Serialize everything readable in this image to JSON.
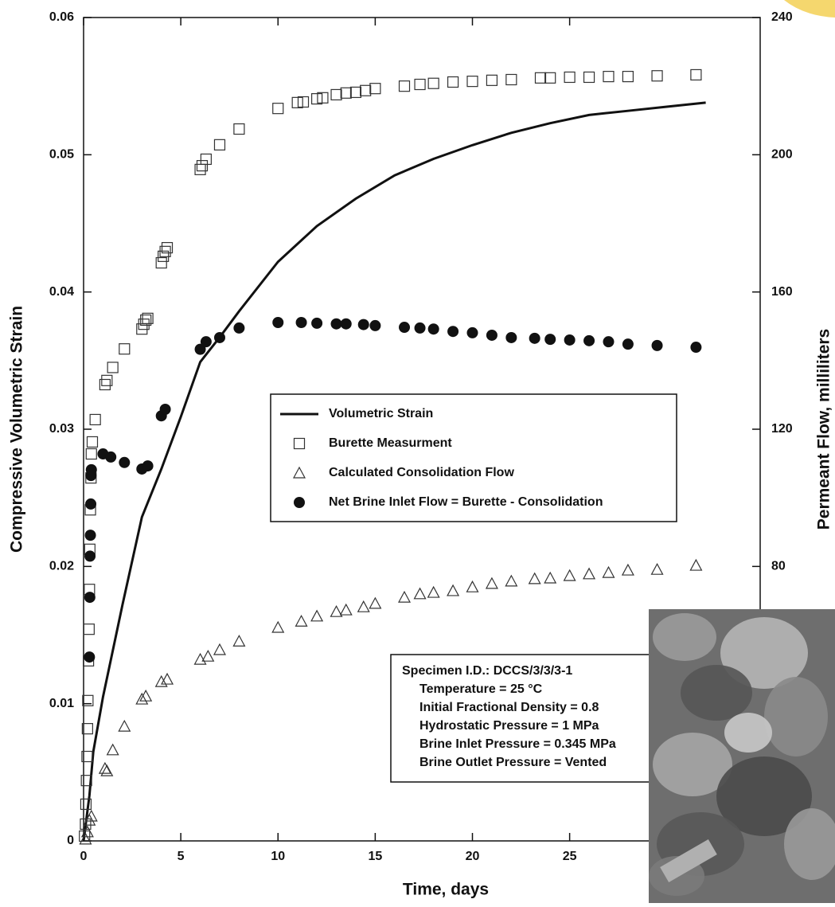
{
  "chart_data": {
    "type": "scatter",
    "x_label": "Time, days",
    "y_label": "Compressive Volumetric Strain",
    "y2_label": "Permeant Flow, milliliters",
    "xlim": [
      0,
      34.8
    ],
    "xticks": [
      0,
      5,
      10,
      15,
      20,
      25
    ],
    "ylim": [
      0,
      0.06
    ],
    "yticks": [
      0,
      0.01,
      0.02,
      0.03,
      0.04,
      0.05,
      0.06
    ],
    "y2lim": [
      0,
      240
    ],
    "y2ticks": [
      80,
      120,
      160,
      200,
      240
    ],
    "series": [
      {
        "name": "Volumetric Strain",
        "marker": "line",
        "color": "#111111",
        "x": [
          0,
          0.3,
          0.5,
          1,
          2,
          3,
          4,
          5,
          6,
          7,
          8,
          10,
          12,
          14,
          16,
          18,
          20,
          22,
          24,
          26,
          28,
          30,
          32
        ],
        "values": [
          0,
          0.0033,
          0.0065,
          0.0105,
          0.0172,
          0.0236,
          0.0271,
          0.0309,
          0.0349,
          0.0367,
          0.0386,
          0.0422,
          0.0448,
          0.0468,
          0.0485,
          0.0497,
          0.0507,
          0.0516,
          0.0523,
          0.0529,
          0.0532,
          0.0535,
          0.0538
        ]
      },
      {
        "name": "Burette Measurment",
        "marker": "square",
        "color": "#333333",
        "axis": "y2",
        "x": [
          0.05,
          0.1,
          0.12,
          0.15,
          0.18,
          0.2,
          0.22,
          0.25,
          0.28,
          0.3,
          0.32,
          0.35,
          0.38,
          0.4,
          0.45,
          0.6,
          1.1,
          1.2,
          1.5,
          2.1,
          3.0,
          3.1,
          3.2,
          3.3,
          4.0,
          4.1,
          4.2,
          4.3,
          6.0,
          6.1,
          6.3,
          7.0,
          8.0,
          10.0,
          11.0,
          11.3,
          12.0,
          12.3,
          13.0,
          13.5,
          14.0,
          14.5,
          15.0,
          16.5,
          17.3,
          18.0,
          19.0,
          20.0,
          21.0,
          22.0,
          23.5,
          24.0,
          25.0,
          26.0,
          27.0,
          28.0,
          29.5,
          31.5
        ],
        "values": [
          1.4,
          4.9,
          10.7,
          17.6,
          24.6,
          32.7,
          40.9,
          52.5,
          61.7,
          73.3,
          85,
          96.5,
          105.8,
          112.8,
          116.3,
          122.8,
          133,
          134.2,
          138,
          143.4,
          149.2,
          150.6,
          151.8,
          152.3,
          168.5,
          170.4,
          171.8,
          172.9,
          195.7,
          196.8,
          198.7,
          202.9,
          207.5,
          213.5,
          215.2,
          215.4,
          216.3,
          216.6,
          217.5,
          218,
          218.2,
          218.7,
          219.3,
          220,
          220.5,
          220.8,
          221.2,
          221.4,
          221.7,
          221.9,
          222.4,
          222.4,
          222.6,
          222.6,
          222.8,
          222.8,
          223,
          223.3
        ]
      },
      {
        "name": "Calculated Consolidation Flow",
        "marker": "triangle",
        "color": "#333333",
        "axis": "y2",
        "x": [
          0.1,
          0.2,
          0.3,
          0.4,
          1.1,
          1.2,
          1.5,
          2.1,
          3.0,
          3.2,
          4.0,
          4.3,
          6.0,
          6.4,
          7.0,
          8.0,
          10.0,
          11.2,
          12.0,
          13.0,
          13.5,
          14.4,
          15.0,
          16.5,
          17.3,
          18.0,
          19.0,
          20.0,
          21.0,
          22.0,
          23.2,
          24.0,
          25.0,
          26.0,
          27.0,
          28.0,
          29.5,
          31.5
        ],
        "values": [
          0.5,
          2.6,
          6,
          7.2,
          21.1,
          20.4,
          26.5,
          33.4,
          41.3,
          42.2,
          46.4,
          47.1,
          52.9,
          53.8,
          55.7,
          58.2,
          62.2,
          64,
          65.5,
          66.8,
          67.3,
          68.2,
          69.2,
          71,
          72,
          72.4,
          72.9,
          74,
          75,
          75.7,
          76.4,
          76.6,
          77.3,
          77.8,
          78.2,
          78.9,
          79.1,
          80.3
        ]
      },
      {
        "name": "Net Brine Inlet Flow = Burette - Consolidation",
        "marker": "circle",
        "color": "#111111",
        "axis": "y2",
        "x": [
          0.3,
          0.32,
          0.33,
          0.35,
          0.37,
          0.38,
          0.4,
          1.0,
          1.4,
          2.1,
          3.0,
          3.3,
          4.0,
          4.2,
          6.0,
          6.3,
          7.0,
          8.0,
          10.0,
          11.2,
          12.0,
          13.0,
          13.5,
          14.4,
          15.0,
          16.5,
          17.3,
          18.0,
          19.0,
          20.0,
          21.0,
          22.0,
          23.2,
          24.0,
          25.0,
          26.0,
          27.0,
          28.0,
          29.5,
          31.5
        ],
        "values": [
          53.6,
          71,
          83,
          89.1,
          98.2,
          106.5,
          108.2,
          112.8,
          111.9,
          110.3,
          108.4,
          109.3,
          123.9,
          125.8,
          143.3,
          145.5,
          146.7,
          149.5,
          151.1,
          151.1,
          150.9,
          150.7,
          150.7,
          150.5,
          150.2,
          149.7,
          149.5,
          149.2,
          148.5,
          148.1,
          147.4,
          146.7,
          146.5,
          146.2,
          146,
          145.8,
          145.5,
          144.8,
          144.4,
          143.9
        ]
      }
    ],
    "annotation": {
      "title": "Specimen I.D.:  DCCS/3/3/3-1",
      "lines": [
        "Temperature = 25 °C",
        "Initial Fractional Density = 0.8",
        "Hydrostatic Pressure = 1 MPa",
        "Brine Inlet Pressure = 0.345 MPa",
        "Brine Outlet Pressure = Vented"
      ]
    }
  }
}
